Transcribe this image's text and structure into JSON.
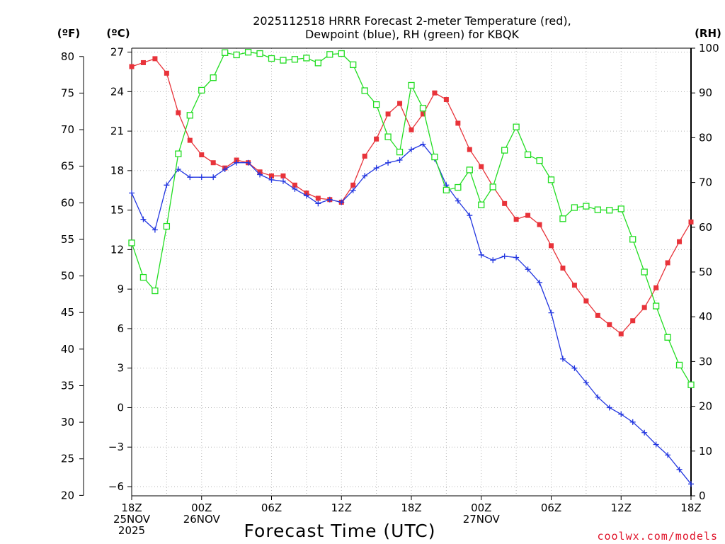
{
  "chart_data": {
    "type": "line",
    "title_lines": [
      "2025112518 HRRR Forecast 2-meter Temperature (red),",
      "Dewpoint (blue), RH (green) for KBQK"
    ],
    "xlabel": "Forecast Time (UTC)",
    "x_hours": [
      0,
      1,
      2,
      3,
      4,
      5,
      6,
      7,
      8,
      9,
      10,
      11,
      12,
      13,
      14,
      15,
      16,
      17,
      18,
      19,
      20,
      21,
      22,
      23,
      24,
      25,
      26,
      27,
      28,
      29,
      30,
      31,
      32,
      33,
      34,
      35,
      36,
      37,
      38,
      39,
      40,
      41,
      42,
      43,
      44,
      45,
      46,
      47,
      48
    ],
    "x_ticks": [
      {
        "h": 0,
        "lines": [
          "18Z",
          "25NOV",
          "2025"
        ]
      },
      {
        "h": 6,
        "lines": [
          "00Z",
          "26NOV"
        ]
      },
      {
        "h": 12,
        "lines": [
          "06Z"
        ]
      },
      {
        "h": 18,
        "lines": [
          "12Z"
        ]
      },
      {
        "h": 24,
        "lines": [
          "18Z"
        ]
      },
      {
        "h": 30,
        "lines": [
          "00Z",
          "27NOV"
        ]
      },
      {
        "h": 36,
        "lines": [
          "06Z"
        ]
      },
      {
        "h": 42,
        "lines": [
          "12Z"
        ]
      },
      {
        "h": 48,
        "lines": [
          "18Z"
        ]
      }
    ],
    "y_celsius": {
      "unit_label": "(ºC)",
      "range": [
        -6.7,
        27.3
      ],
      "ticks": [
        "27",
        "24",
        "21",
        "18",
        "15",
        "12",
        "9",
        "6",
        "3",
        "0",
        "−3",
        "−6"
      ]
    },
    "y_fahrenheit": {
      "unit_label": "(ºF)",
      "ticks": [
        "80",
        "75",
        "70",
        "65",
        "60",
        "55",
        "50",
        "45",
        "40",
        "35",
        "30",
        "25",
        "20"
      ]
    },
    "y_rh": {
      "unit_label": "(RH)",
      "range": [
        0,
        100
      ],
      "ticks": [
        "100",
        "90",
        "80",
        "70",
        "60",
        "50",
        "40",
        "30",
        "20",
        "10",
        "0"
      ]
    },
    "series": [
      {
        "name": "Temperature",
        "color": "#e8333a",
        "marker": "filled-square",
        "axis": "celsius",
        "values": [
          25.9,
          26.2,
          26.5,
          25.4,
          22.4,
          20.3,
          19.2,
          18.6,
          18.2,
          18.8,
          18.6,
          17.9,
          17.6,
          17.6,
          16.9,
          16.3,
          15.9,
          15.8,
          15.6,
          16.9,
          19.1,
          20.4,
          22.3,
          23.1,
          21.1,
          22.3,
          23.9,
          23.4,
          21.6,
          19.6,
          18.3,
          16.8,
          15.5,
          14.3,
          14.6,
          13.9,
          12.3,
          10.6,
          9.3,
          8.1,
          7.0,
          6.3,
          5.6,
          6.6,
          7.6,
          9.1,
          11.0,
          12.6,
          14.1
        ]
      },
      {
        "name": "Dewpoint",
        "color": "#2236e0",
        "marker": "plus",
        "axis": "celsius",
        "values": [
          16.3,
          14.3,
          13.5,
          16.9,
          18.1,
          17.5,
          17.5,
          17.5,
          18.1,
          18.6,
          18.6,
          17.7,
          17.3,
          17.2,
          16.6,
          16.1,
          15.5,
          15.8,
          15.6,
          16.5,
          17.6,
          18.2,
          18.6,
          18.8,
          19.6,
          20.0,
          18.9,
          16.9,
          15.7,
          14.6,
          11.6,
          11.2,
          11.5,
          11.4,
          10.5,
          9.5,
          7.2,
          3.7,
          3.0,
          1.9,
          0.8,
          0.0,
          -0.5,
          -1.1,
          -1.9,
          -2.8,
          -3.6,
          -4.7,
          -5.8
        ]
      },
      {
        "name": "RH",
        "color": "#22dd22",
        "marker": "open-square",
        "axis": "rh",
        "values": [
          56.5,
          48.8,
          45.8,
          60.2,
          76.4,
          85.0,
          90.6,
          93.4,
          99.0,
          98.5,
          99.1,
          98.8,
          97.7,
          97.3,
          97.5,
          97.8,
          96.7,
          98.6,
          98.8,
          96.3,
          90.5,
          87.4,
          80.2,
          76.8,
          91.7,
          86.6,
          75.7,
          68.3,
          68.9,
          72.8,
          65.0,
          69.0,
          77.2,
          82.4,
          76.2,
          74.9,
          70.6,
          61.9,
          64.4,
          64.7,
          63.9,
          63.8,
          64.1,
          57.3,
          50.0,
          42.4,
          35.4,
          29.2,
          24.8
        ]
      }
    ]
  },
  "credit": "coolwx.com/models"
}
